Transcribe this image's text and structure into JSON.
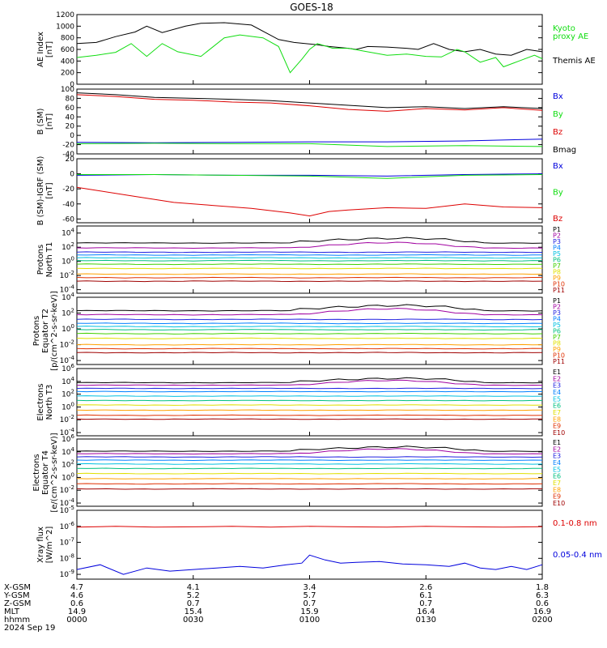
{
  "title": "GOES-18",
  "colors": {
    "black": "#000000",
    "red": "#dd0000",
    "green": "#11dd11",
    "blue": "#0000dd",
    "levels11": [
      "#000000",
      "#a000a0",
      "#2020e0",
      "#0080ff",
      "#00c0e0",
      "#00c080",
      "#40d000",
      "#e0e000",
      "#ffa000",
      "#e03000",
      "#a00000"
    ],
    "levels10": [
      "#000000",
      "#a000a0",
      "#2020e0",
      "#0080ff",
      "#00c0e0",
      "#00c080",
      "#e0e000",
      "#ffa000",
      "#e03000",
      "#a00000"
    ]
  },
  "chart_data": [
    {
      "id": "ae",
      "type": "line",
      "ylabel": [
        "AE Index",
        "[nT]"
      ],
      "ylim": [
        0,
        1200
      ],
      "yticks": [
        "0",
        "200",
        "400",
        "600",
        "800",
        "1000",
        "1200"
      ],
      "legend": [
        {
          "label": "Kyoto",
          "color": "#11dd11"
        },
        {
          "label": "proxy AE",
          "color": "#11dd11"
        },
        {
          "label": "Themis AE",
          "color": "#000000"
        }
      ],
      "series": [
        {
          "name": "Themis AE",
          "color": "#000000",
          "x": [
            0,
            5,
            10,
            15,
            18,
            22,
            28,
            32,
            38,
            45,
            52,
            56,
            62,
            65,
            70,
            72,
            75,
            80,
            85,
            88,
            92,
            96,
            100,
            104,
            108,
            112,
            116,
            120
          ],
          "y": [
            700,
            720,
            820,
            900,
            1000,
            890,
            1000,
            1050,
            1060,
            1020,
            770,
            720,
            680,
            650,
            620,
            600,
            650,
            640,
            620,
            600,
            700,
            600,
            560,
            600,
            520,
            500,
            600,
            560
          ]
        },
        {
          "name": "Kyoto proxy AE",
          "color": "#11dd11",
          "x": [
            0,
            5,
            10,
            14,
            18,
            22,
            26,
            32,
            38,
            42,
            48,
            52,
            55,
            58,
            60,
            62,
            66,
            70,
            74,
            80,
            85,
            90,
            94,
            98,
            100,
            104,
            108,
            110,
            114,
            118,
            120
          ],
          "y": [
            460,
            500,
            550,
            700,
            480,
            700,
            560,
            480,
            800,
            850,
            800,
            650,
            200,
            430,
            600,
            700,
            620,
            620,
            570,
            500,
            520,
            480,
            470,
            600,
            560,
            380,
            460,
            300,
            400,
            500,
            440
          ]
        }
      ]
    },
    {
      "id": "bsm",
      "type": "line",
      "ylabel": [
        "B (SM)",
        "[nT]"
      ],
      "ylim": [
        -40,
        100
      ],
      "yticks": [
        "-40",
        "-20",
        "0",
        "20",
        "40",
        "60",
        "80",
        "100"
      ],
      "tick_values": [
        -40,
        -20,
        0,
        20,
        40,
        60,
        80,
        100
      ],
      "legend": [
        {
          "label": "Bx",
          "color": "#0000dd"
        },
        {
          "label": "By",
          "color": "#11dd11"
        },
        {
          "label": "Bz",
          "color": "#dd0000"
        },
        {
          "label": "Bmag",
          "color": "#000000"
        }
      ],
      "series": [
        {
          "name": "Bmag",
          "color": "#000000",
          "x": [
            0,
            10,
            20,
            30,
            40,
            50,
            60,
            70,
            80,
            90,
            100,
            110,
            120
          ],
          "y": [
            92,
            88,
            82,
            80,
            78,
            75,
            70,
            65,
            60,
            62,
            58,
            62,
            58
          ]
        },
        {
          "name": "Bz",
          "color": "#dd0000",
          "x": [
            0,
            10,
            20,
            30,
            40,
            50,
            60,
            70,
            80,
            90,
            100,
            110,
            120
          ],
          "y": [
            88,
            84,
            78,
            76,
            72,
            70,
            64,
            56,
            52,
            58,
            55,
            60,
            54
          ]
        },
        {
          "name": "Bx",
          "color": "#0000dd",
          "x": [
            0,
            20,
            40,
            60,
            80,
            100,
            120
          ],
          "y": [
            -15,
            -16,
            -15,
            -14,
            -14,
            -12,
            -8
          ]
        },
        {
          "name": "By",
          "color": "#11dd11",
          "x": [
            0,
            20,
            40,
            60,
            80,
            100,
            120
          ],
          "y": [
            -18,
            -17,
            -18,
            -18,
            -24,
            -22,
            -24
          ]
        }
      ]
    },
    {
      "id": "bigrf",
      "type": "line",
      "ylabel": [
        "B (SM)-IGRF (SM)",
        "[nT]"
      ],
      "ylim": [
        -65,
        20
      ],
      "yticks": [
        "-60",
        "-40",
        "-20",
        "0",
        "20"
      ],
      "tick_values": [
        -60,
        -40,
        -20,
        0,
        20
      ],
      "legend": [
        {
          "label": "Bx",
          "color": "#0000dd"
        },
        {
          "label": "By",
          "color": "#11dd11"
        },
        {
          "label": "Bz",
          "color": "#dd0000"
        }
      ],
      "series": [
        {
          "name": "Bx",
          "color": "#0000dd",
          "x": [
            0,
            20,
            40,
            60,
            80,
            100,
            120
          ],
          "y": [
            -2,
            -1,
            -2,
            -2,
            -3,
            -1,
            0
          ]
        },
        {
          "name": "By",
          "color": "#11dd11",
          "x": [
            0,
            20,
            40,
            60,
            80,
            100,
            120
          ],
          "y": [
            -1,
            -1,
            -2,
            -3,
            -6,
            -2,
            -1
          ]
        },
        {
          "name": "Bz",
          "color": "#dd0000",
          "x": [
            0,
            5,
            15,
            25,
            35,
            45,
            55,
            60,
            65,
            70,
            80,
            90,
            100,
            110,
            120
          ],
          "y": [
            -18,
            -22,
            -30,
            -38,
            -42,
            -46,
            -52,
            -56,
            -50,
            -48,
            -45,
            -46,
            -40,
            -44,
            -45
          ]
        }
      ]
    },
    {
      "id": "pnt1",
      "type": "line",
      "scale": "log",
      "ylabel": [
        "Protons",
        "North T1"
      ],
      "yticks": [
        "10^-4",
        "10^-2",
        "10^0",
        "10^2",
        "10^4"
      ],
      "ylim_exp": [
        -4.5,
        5
      ],
      "legend": [
        "P1",
        "P2",
        "P3",
        "P4",
        "P5",
        "P6",
        "P7",
        "P8",
        "P9",
        "P10",
        "P11"
      ],
      "base_exp": [
        2.6,
        1.9,
        1.3,
        0.9,
        0.5,
        0.1,
        -0.4,
        -1.0,
        -1.8,
        -2.3,
        -2.8
      ]
    },
    {
      "id": "pet2",
      "type": "line",
      "scale": "log",
      "ylabel": [
        "Protons",
        "Equator T2",
        "[p/(cm^2-s-sr-keV)]"
      ],
      "yticks": [
        "10^-4",
        "10^-2",
        "10^0",
        "10^2",
        "10^4"
      ],
      "ylim_exp": [
        -4.5,
        4
      ],
      "legend": [
        "P1",
        "P2",
        "P3",
        "P4",
        "P5",
        "P6",
        "P7",
        "P8",
        "P9",
        "P10",
        "P11"
      ],
      "base_exp": [
        2.3,
        1.8,
        1.2,
        0.7,
        0.3,
        -0.1,
        -0.6,
        -1.2,
        -2.0,
        -2.5,
        -3.0
      ]
    },
    {
      "id": "ent3",
      "type": "line",
      "scale": "log",
      "ylabel": [
        "Electrons",
        "North T3"
      ],
      "yticks": [
        "10^-4",
        "10^-2",
        "10^0",
        "10^2",
        "10^4",
        "10^6"
      ],
      "ylim_exp": [
        -4.5,
        6
      ],
      "legend": [
        "E1",
        "E2",
        "E3",
        "E4",
        "E5",
        "E6",
        "E7",
        "E8",
        "E9",
        "E10"
      ],
      "base_exp": [
        3.8,
        3.4,
        2.9,
        2.4,
        1.7,
        1.0,
        0.3,
        -0.5,
        -1.3,
        -1.9
      ]
    },
    {
      "id": "eet4",
      "type": "line",
      "scale": "log",
      "ylabel": [
        "Electrons",
        "Equator T4",
        "[e/(cm^2-s-sr-keV)]"
      ],
      "yticks": [
        "10^-4",
        "10^-2",
        "10^0",
        "10^2",
        "10^4",
        "10^6"
      ],
      "ylim_exp": [
        -4.5,
        6
      ],
      "legend": [
        "E1",
        "E2",
        "E3",
        "E4",
        "E5",
        "E6",
        "E7",
        "E8",
        "E9",
        "E10"
      ],
      "base_exp": [
        4.1,
        3.7,
        3.2,
        2.7,
        2.1,
        1.4,
        0.6,
        -0.2,
        -1.0,
        -1.8
      ]
    },
    {
      "id": "xray",
      "type": "line",
      "scale": "log",
      "ylabel": [
        "Xray flux",
        "[W/m^2]"
      ],
      "yticks": [
        "10^-9",
        "10^-8",
        "10^-7",
        "10^-6",
        "10^-5"
      ],
      "ylim_exp": [
        -9.3,
        -5
      ],
      "legend": [
        {
          "label": "0.1-0.8 nm",
          "color": "#dd0000"
        },
        {
          "label": "0.05-0.4 nm",
          "color": "#0000dd"
        }
      ],
      "series": [
        {
          "name": "0.1-0.8 nm",
          "color": "#dd0000",
          "x": [
            0,
            10,
            20,
            30,
            40,
            50,
            60,
            70,
            80,
            90,
            100,
            110,
            120
          ],
          "y": [
            -6.05,
            -6.0,
            -6.05,
            -6.03,
            -6.0,
            -6.05,
            -6.0,
            -6.03,
            -6.05,
            -6.0,
            -6.03,
            -6.05,
            -6.02
          ]
        },
        {
          "name": "0.05-0.4 nm",
          "color": "#0000dd",
          "x": [
            0,
            6,
            12,
            18,
            24,
            30,
            36,
            42,
            48,
            54,
            58,
            60,
            64,
            68,
            72,
            78,
            84,
            90,
            96,
            100,
            104,
            108,
            112,
            116,
            120
          ],
          "y": [
            -8.7,
            -8.4,
            -9.0,
            -8.6,
            -8.8,
            -8.7,
            -8.6,
            -8.5,
            -8.6,
            -8.4,
            -8.3,
            -7.8,
            -8.1,
            -8.3,
            -8.25,
            -8.2,
            -8.35,
            -8.4,
            -8.5,
            -8.3,
            -8.6,
            -8.7,
            -8.5,
            -8.7,
            -8.4
          ]
        }
      ]
    }
  ],
  "xaxis": {
    "rows": [
      {
        "label": "X-GSM",
        "values": [
          "4.7",
          "4.1",
          "3.4",
          "2.6",
          "1.8"
        ]
      },
      {
        "label": "Y-GSM",
        "values": [
          "4.6",
          "5.2",
          "5.7",
          "6.1",
          "6.3"
        ]
      },
      {
        "label": "Z-GSM",
        "values": [
          "0.6",
          "0.7",
          "0.7",
          "0.7",
          "0.6"
        ]
      },
      {
        "label": "MLT",
        "values": [
          "14.9",
          "15.4",
          "15.9",
          "16.4",
          "16.9"
        ]
      },
      {
        "label": "hhmm",
        "values": [
          "0000",
          "0030",
          "0100",
          "0130",
          "0200"
        ]
      }
    ],
    "date": "2024 Sep 19",
    "minutes": [
      0,
      30,
      60,
      90,
      120
    ]
  }
}
